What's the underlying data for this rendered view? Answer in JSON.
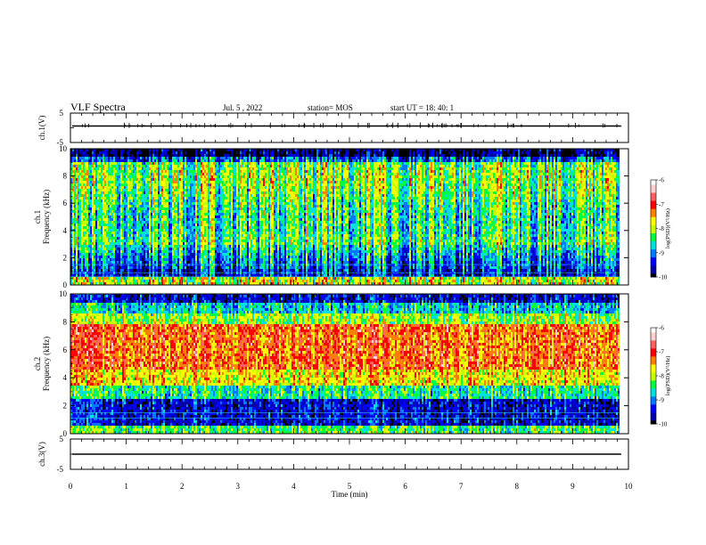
{
  "header": {
    "title": "VLF Spectra",
    "date": "Jul. 5 , 2022",
    "station": "station= MOS",
    "start": "start UT = 18: 40: 1"
  },
  "colors": {
    "scale": [
      "#000000",
      "#0000aa",
      "#0000ff",
      "#0078ff",
      "#00e0e0",
      "#00ff40",
      "#c8ff00",
      "#ffff00",
      "#ff8000",
      "#ff0000",
      "#ff6060",
      "#ffd0d0",
      "#ffffff"
    ],
    "trace": "#000000"
  },
  "chart_data": {
    "type": "heatmap",
    "x_axis": {
      "label": "Time (min)",
      "range": [
        0,
        10
      ],
      "ticks": [
        "0",
        "1",
        "2",
        "3",
        "4",
        "5",
        "6",
        "7",
        "8",
        "9",
        "10"
      ]
    },
    "panels": [
      {
        "name": "ch1-voltage",
        "type": "line",
        "ylabel": "ch.1(V)",
        "ylim": [
          -5,
          5
        ],
        "ticks": [
          "5",
          "-5"
        ],
        "level": 0,
        "x_end": 9.87
      },
      {
        "name": "ch1-spectrogram",
        "type": "heatmap",
        "ylabel_top": "ch.1",
        "ylabel": "Frequency (kHz)",
        "ylim": [
          0,
          10
        ],
        "ticks": [
          "0",
          "2",
          "4",
          "6",
          "8",
          "10"
        ],
        "x_end": 9.87,
        "colorbar": {
          "range": [
            -10,
            -6
          ],
          "ticks": [
            "-6",
            "-7",
            "-8",
            "-9",
            "-10"
          ],
          "label": "log(PSD)(V²/Hz)"
        }
      },
      {
        "name": "ch2-spectrogram",
        "type": "heatmap",
        "ylabel_top": "ch.2",
        "ylabel": "Frequency (kHz)",
        "ylim": [
          0,
          10
        ],
        "ticks": [
          "0",
          "2",
          "4",
          "6",
          "8",
          "10"
        ],
        "x_end": 9.87,
        "colorbar": {
          "range": [
            -10,
            -6
          ],
          "ticks": [
            "-6",
            "-7",
            "-8",
            "-9",
            "-10"
          ],
          "label": "log(PSD)(V²/Hz)"
        }
      },
      {
        "name": "ch3-voltage",
        "type": "line",
        "ylabel": "ch.3(V)",
        "ylim": [
          -5,
          5
        ],
        "ticks": [
          "5",
          "-5"
        ],
        "level": 0,
        "x_end": 9.87
      }
    ]
  }
}
